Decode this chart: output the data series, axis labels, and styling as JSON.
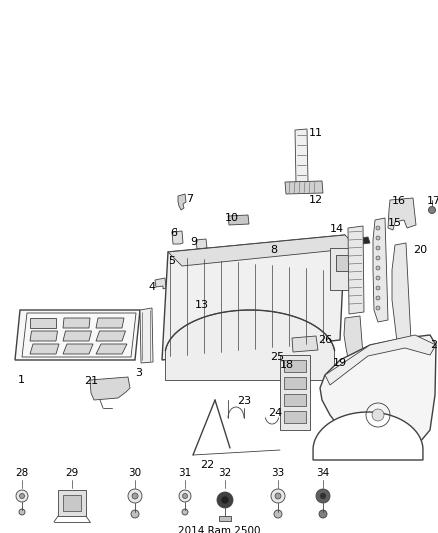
{
  "bg_color": "#ffffff",
  "line_color": "#404040",
  "label_color": "#000000",
  "figsize": [
    4.38,
    5.33
  ],
  "dpi": 100
}
